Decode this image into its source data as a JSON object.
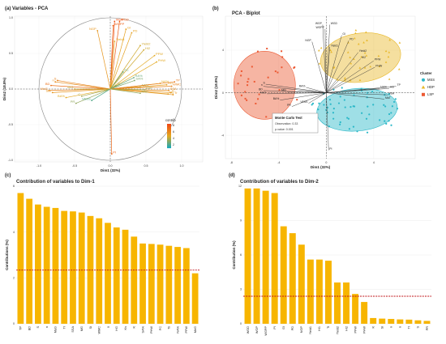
{
  "panels": {
    "a": {
      "label": "(a)",
      "title": "Variables - PCA"
    },
    "b": {
      "label": "(b)",
      "title": "PCA - Biplot"
    },
    "c": {
      "label": "(c)",
      "title": "Contribution of variables to Dim-1"
    },
    "d": {
      "label": "(d)",
      "title": "Contribution of variables to Dim-2"
    }
  },
  "colors": {
    "low": "#19a9b9",
    "mid": "#e3a81f",
    "high": "#f04a14",
    "bar": "#f7b500",
    "refline": "#c0141a",
    "mss": "#2bb8c8",
    "hdp": "#e8b82a",
    "lsp": "#ec5a34"
  },
  "chart_data": [
    {
      "type": "scatter",
      "panel": "a",
      "xlabel": "Dim1 (32%)",
      "ylabel": "Dim2 (18.8%)",
      "xlim": [
        -1.0,
        1.0
      ],
      "ylim": [
        -1.0,
        1.0
      ],
      "xticks": [
        "-1.0",
        "-0.5",
        "0.0",
        "0.5",
        "1.0"
      ],
      "yticks": [
        "1.0",
        "0.5",
        "0.0",
        "-0.5",
        "-1.0"
      ],
      "legend_title": "contrib",
      "legend_ticks": [
        "8",
        "6",
        "4",
        "2"
      ],
      "variables": [
        {
          "name": "WGP",
          "x": 0.06,
          "y": 0.95,
          "c": 0.95
        },
        {
          "name": "WGD",
          "x": 0.13,
          "y": 0.95,
          "c": 0.9
        },
        {
          "name": "WGPP",
          "x": 0.04,
          "y": 0.89,
          "c": 0.88
        },
        {
          "name": "NGP",
          "x": -0.18,
          "y": 0.82,
          "c": 0.6
        },
        {
          "name": "GI",
          "x": 0.22,
          "y": 0.84,
          "c": 0.55
        },
        {
          "name": "PD",
          "x": 0.3,
          "y": 0.79,
          "c": 0.55
        },
        {
          "name": "Yield1",
          "x": 0.06,
          "y": 0.67,
          "c": 0.5
        },
        {
          "name": "Yield2",
          "x": 0.42,
          "y": 0.61,
          "c": 0.45
        },
        {
          "name": "HI2",
          "x": 0.47,
          "y": 0.55,
          "c": 0.45
        },
        {
          "name": "PFW",
          "x": 0.62,
          "y": 0.47,
          "c": 0.5
        },
        {
          "name": "PHW",
          "x": 0.65,
          "y": 0.38,
          "c": 0.5
        },
        {
          "name": "PI",
          "x": 0.02,
          "y": -0.91,
          "c": 0.85
        },
        {
          "name": "FC",
          "x": 0.18,
          "y": 0.24,
          "c": 0.2
        },
        {
          "name": "RA%",
          "x": 0.33,
          "y": 0.16,
          "c": 0.2
        },
        {
          "name": "Si",
          "x": 0.08,
          "y": 0.05,
          "c": 0.3
        },
        {
          "name": "SA%",
          "x": 0.34,
          "y": 0.12,
          "c": 0.25
        },
        {
          "name": "AA%",
          "x": 0.42,
          "y": 0.03,
          "c": 0.3
        },
        {
          "name": "NA%",
          "x": 0.7,
          "y": 0.08,
          "c": 0.5
        },
        {
          "name": "HG",
          "x": 0.79,
          "y": 0.06,
          "c": 0.55
        },
        {
          "name": "TP",
          "x": 0.9,
          "y": 0.1,
          "c": 0.75
        },
        {
          "name": "WMC",
          "x": 0.86,
          "y": 0.04,
          "c": 0.7
        },
        {
          "name": "SSA",
          "x": 0.82,
          "y": -0.02,
          "c": 0.65
        },
        {
          "name": "K",
          "x": 0.85,
          "y": -0.05,
          "c": 0.6
        },
        {
          "name": "Mg",
          "x": 0.81,
          "y": -0.07,
          "c": 0.55
        },
        {
          "name": "Tr",
          "x": 0.88,
          "y": -0.08,
          "c": 0.6
        },
        {
          "name": "RAC",
          "x": 0.42,
          "y": -0.06,
          "c": 0.3
        },
        {
          "name": "AAP",
          "x": 0.48,
          "y": -0.01,
          "c": 0.35
        },
        {
          "name": "S",
          "x": -0.74,
          "y": 0.12,
          "c": 0.7
        },
        {
          "name": "n",
          "x": -0.77,
          "y": 0.1,
          "c": 0.65
        },
        {
          "name": "BD",
          "x": -0.83,
          "y": 0.05,
          "c": 0.8
        },
        {
          "name": "MaG",
          "x": -0.86,
          "y": -0.02,
          "c": 0.7
        },
        {
          "name": "SDt",
          "x": -0.81,
          "y": -0.05,
          "c": 0.6
        },
        {
          "name": "BA%",
          "x": -0.62,
          "y": -0.12,
          "c": 0.5
        },
        {
          "name": "MiG",
          "x": -0.5,
          "y": 0.0,
          "c": 0.4
        },
        {
          "name": "C",
          "x": -0.4,
          "y": -0.1,
          "c": 0.35
        },
        {
          "name": "PR",
          "x": -0.48,
          "y": -0.2,
          "c": 0.3
        },
        {
          "name": "VESS",
          "x": -0.26,
          "y": -0.16,
          "c": 0.15
        }
      ]
    },
    {
      "type": "scatter",
      "panel": "b",
      "xlabel": "Dim1 (32%)",
      "ylabel": "Dim2 (18.8%)",
      "xlim": [
        -8.5,
        7.5
      ],
      "ylim": [
        -6.2,
        7.2
      ],
      "xticks": [
        -8,
        -4,
        0,
        4
      ],
      "yticks": [
        4,
        0,
        -4
      ],
      "legend_title": "Cluster",
      "clusters": [
        "MSS",
        "HDP",
        "LSP"
      ],
      "annotation": {
        "title": "Monte Carlo Test",
        "observation": "Observation: 0.33",
        "pvalue": "p-value: 0.001"
      },
      "ellipses": [
        {
          "cluster": "LSP",
          "cx": -5.2,
          "cy": 0.7,
          "rx": 2.6,
          "ry": 3.2,
          "angle": 0
        },
        {
          "cluster": "HDP",
          "cx": 2.9,
          "cy": 3.3,
          "rx": 3.4,
          "ry": 2.3,
          "angle": -8
        },
        {
          "cluster": "MSS",
          "cx": 2.6,
          "cy": -1.6,
          "rx": 3.4,
          "ry": 2.0,
          "angle": -5
        }
      ],
      "arrows": [
        {
          "name": "WGP",
          "x": -0.3,
          "y": 6.4
        },
        {
          "name": "WGD",
          "x": 0.3,
          "y": 6.4
        },
        {
          "name": "WGPP",
          "x": -0.1,
          "y": 6.0
        },
        {
          "name": "NGP",
          "x": -1.2,
          "y": 4.8
        },
        {
          "name": "GI",
          "x": 1.3,
          "y": 5.4
        },
        {
          "name": "PD",
          "x": 1.9,
          "y": 4.9
        },
        {
          "name": "Yield1",
          "x": 0.3,
          "y": 4.3
        },
        {
          "name": "Yield2",
          "x": 2.7,
          "y": 3.8
        },
        {
          "name": "HI2",
          "x": 2.9,
          "y": 3.2
        },
        {
          "name": "PFW",
          "x": 4.0,
          "y": 3.0
        },
        {
          "name": "PHW",
          "x": 4.1,
          "y": 2.4
        },
        {
          "name": "PI",
          "x": 0.2,
          "y": -5.4
        },
        {
          "name": "TP",
          "x": 5.9,
          "y": 0.6
        },
        {
          "name": "HG",
          "x": 5.3,
          "y": 0.4
        },
        {
          "name": "SSA",
          "x": 5.2,
          "y": -0.2
        },
        {
          "name": "MaT",
          "x": 4.9,
          "y": -0.6
        },
        {
          "name": "NA%",
          "x": 4.5,
          "y": 0.4
        },
        {
          "name": "S",
          "x": -5.1,
          "y": 0.8
        },
        {
          "name": "n",
          "x": -5.3,
          "y": 0.6
        },
        {
          "name": "BD",
          "x": -5.3,
          "y": 0.2
        },
        {
          "name": "MaG",
          "x": -5.0,
          "y": -0.1
        },
        {
          "name": "BA%",
          "x": -3.9,
          "y": -0.7
        },
        {
          "name": "MiG",
          "x": -3.3,
          "y": 0.1
        },
        {
          "name": "PR",
          "x": -2.9,
          "y": -1.3
        },
        {
          "name": "VESS",
          "x": -1.5,
          "y": -1.0
        },
        {
          "name": "RA%",
          "x": -1.7,
          "y": 0.5
        }
      ]
    },
    {
      "type": "bar",
      "panel": "c",
      "ylabel": "Contributions (%)",
      "ylim": [
        0,
        6
      ],
      "yticks": [
        0,
        2,
        4,
        6
      ],
      "reference": 2.34,
      "categories": [
        "TP",
        "BD",
        "S",
        "n",
        "MaG",
        "Tr",
        "SSA",
        "MG",
        "Si",
        "WMC",
        "a",
        "HG",
        "Ks",
        "K",
        "SA%",
        "PHW",
        "FC",
        "Ts",
        "NA%",
        "PFW",
        "MeG"
      ],
      "values": [
        5.7,
        5.45,
        5.2,
        5.1,
        5.05,
        4.92,
        4.9,
        4.85,
        4.7,
        4.6,
        4.4,
        4.2,
        4.1,
        3.8,
        3.5,
        3.48,
        3.45,
        3.4,
        3.35,
        3.3,
        2.2
      ]
    },
    {
      "type": "bar",
      "panel": "d",
      "ylabel": "Contribution (%)",
      "ylim": [
        0,
        12
      ],
      "yticks": [
        0,
        3,
        6,
        9,
        12
      ],
      "reference": 2.4,
      "categories": [
        "WGD",
        "WGP",
        "WGPP",
        "PI",
        "GI",
        "PD",
        "NGP",
        "Yield1",
        "HI1",
        "Ti",
        "Yield2",
        "HI2",
        "PFW",
        "PHW",
        "K",
        "Si",
        "n",
        "n",
        "Tr",
        "S",
        "PR"
      ],
      "values": [
        11.8,
        11.8,
        11.6,
        11.4,
        8.5,
        7.9,
        6.9,
        5.6,
        5.6,
        5.5,
        3.6,
        3.6,
        2.6,
        1.9,
        0.5,
        0.45,
        0.42,
        0.38,
        0.36,
        0.3,
        0.25
      ]
    }
  ]
}
